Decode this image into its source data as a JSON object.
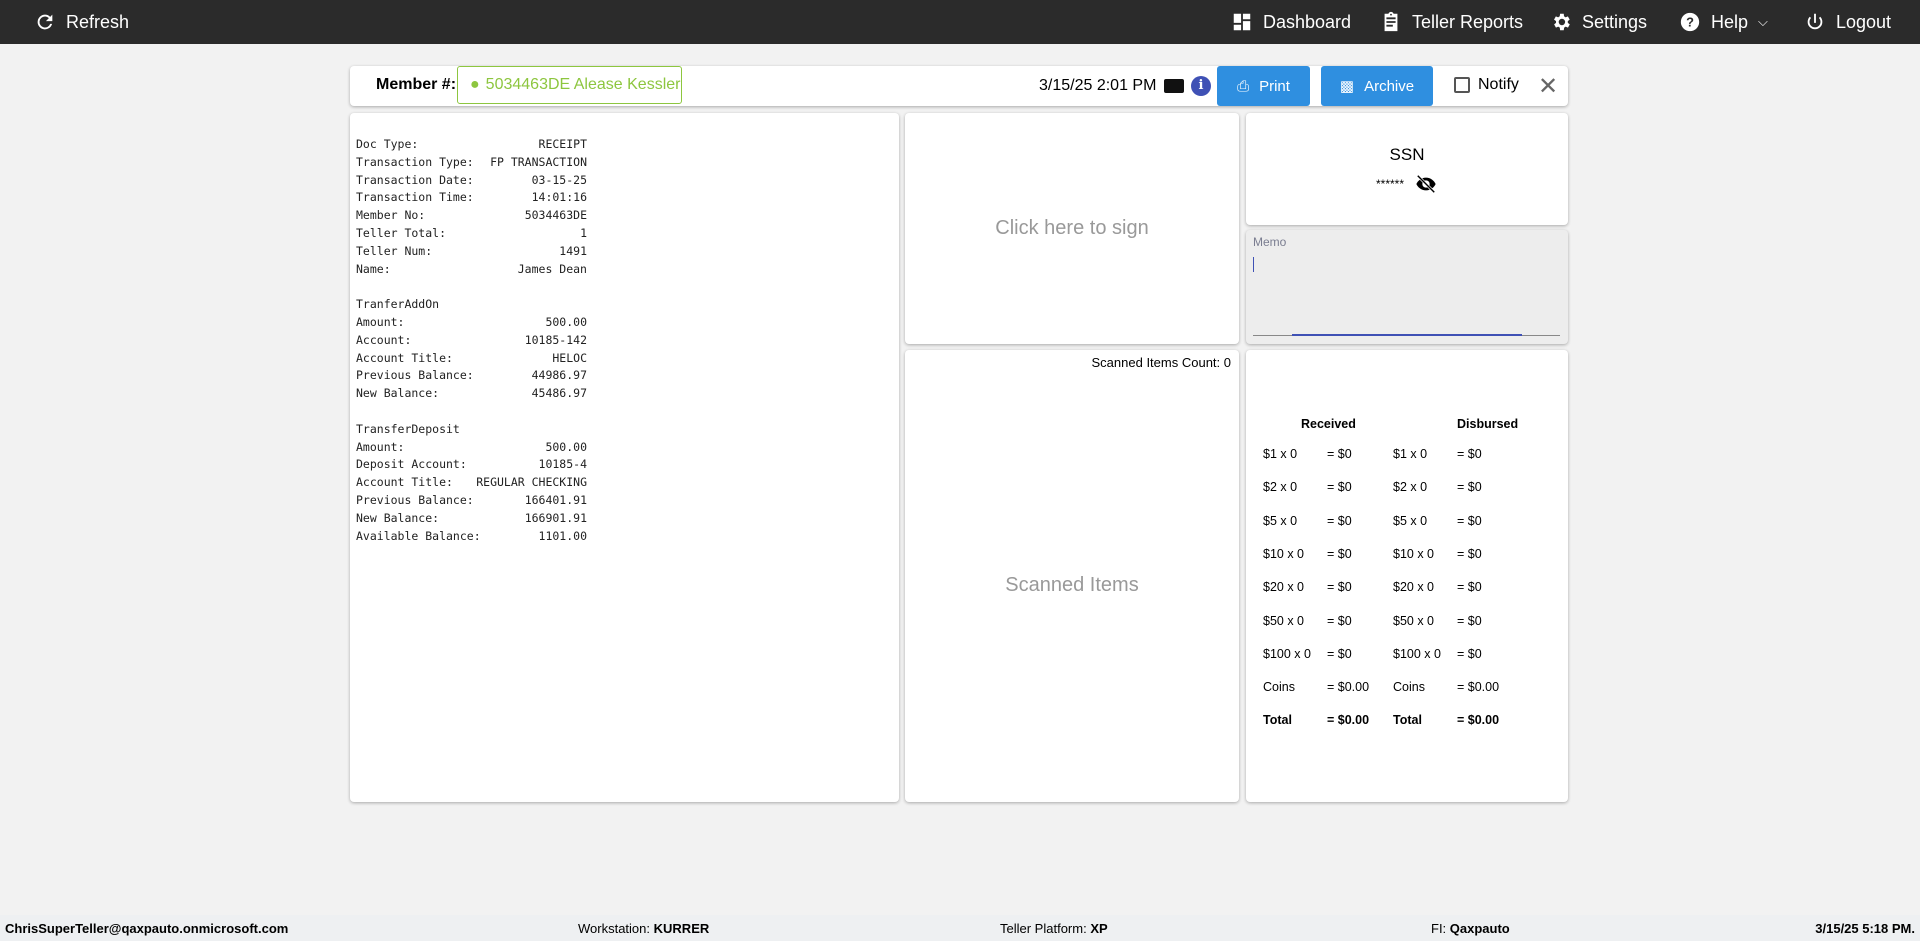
{
  "nav": {
    "refresh": "Refresh",
    "dashboard": "Dashboard",
    "teller_reports": "Teller Reports",
    "settings": "Settings",
    "help": "Help",
    "logout": "Logout"
  },
  "toolbar": {
    "member_label": "Member #:",
    "member_value": "5034463DE Alease Kessler",
    "datetime": "3/15/25 2:01 PM",
    "print": "Print",
    "archive": "Archive",
    "notify": "Notify",
    "accent": "#2f8fe0",
    "member_color": "#8dc63f"
  },
  "receipt": {
    "rows": [
      [
        "Doc Type:",
        "RECEIPT"
      ],
      [
        "Transaction Type:",
        "FP TRANSACTION"
      ],
      [
        "Transaction Date:",
        "03-15-25"
      ],
      [
        "Transaction Time:",
        "14:01:16"
      ],
      [
        "Member No:",
        "5034463DE"
      ],
      [
        "Teller Total:",
        "1"
      ],
      [
        "Teller Num:",
        "1491"
      ],
      [
        "Name:",
        "James Dean"
      ],
      null,
      [
        "TranferAddOn",
        ""
      ],
      [
        "Amount:",
        "500.00"
      ],
      [
        "Account:",
        "10185-142"
      ],
      [
        "Account Title:",
        "HELOC"
      ],
      [
        "Previous Balance:",
        "44986.97"
      ],
      [
        "New Balance:",
        "45486.97"
      ],
      null,
      [
        "TransferDeposit",
        ""
      ],
      [
        "Amount:",
        "500.00"
      ],
      [
        "Deposit Account:",
        "10185-4"
      ],
      [
        "Account Title:",
        "REGULAR CHECKING"
      ],
      [
        "Previous Balance:",
        "166401.91"
      ],
      [
        "New Balance:",
        "166901.91"
      ],
      [
        "Available Balance:",
        "1101.00"
      ]
    ]
  },
  "sign": {
    "label": "Click here to sign"
  },
  "scanned": {
    "count_label": "Scanned Items Count: 0",
    "title": "Scanned Items"
  },
  "ssn": {
    "title": "SSN",
    "masked": "******"
  },
  "memo": {
    "label": "Memo",
    "value": ""
  },
  "cash": {
    "received_header": "Received",
    "disbursed_header": "Disbursed",
    "received": [
      [
        "$1 x 0",
        "= $0"
      ],
      [
        "$2 x 0",
        "= $0"
      ],
      [
        "$5 x 0",
        "= $0"
      ],
      [
        "$10 x 0",
        "= $0"
      ],
      [
        "$20 x 0",
        "= $0"
      ],
      [
        "$50 x 0",
        "= $0"
      ],
      [
        "$100 x 0",
        "= $0"
      ],
      [
        "Coins",
        "= $0.00"
      ],
      [
        "Total",
        "= $0.00"
      ]
    ],
    "disbursed": [
      [
        "$1 x 0",
        "= $0"
      ],
      [
        "$2 x 0",
        "= $0"
      ],
      [
        "$5 x 0",
        "= $0"
      ],
      [
        "$10 x 0",
        "= $0"
      ],
      [
        "$20 x 0",
        "= $0"
      ],
      [
        "$50 x 0",
        "= $0"
      ],
      [
        "$100 x 0",
        "= $0"
      ],
      [
        "Coins",
        "= $0.00"
      ],
      [
        "Total",
        "= $0.00"
      ]
    ]
  },
  "footer": {
    "user": "ChrisSuperTeller@qaxpauto.onmicrosoft.com",
    "workstation_label": "Workstation:",
    "workstation": "KURRER",
    "platform_label": "Teller Platform:",
    "platform": "XP",
    "fi_label": "FI:",
    "fi": "Qaxpauto",
    "datetime": "3/15/25 5:18 PM."
  }
}
